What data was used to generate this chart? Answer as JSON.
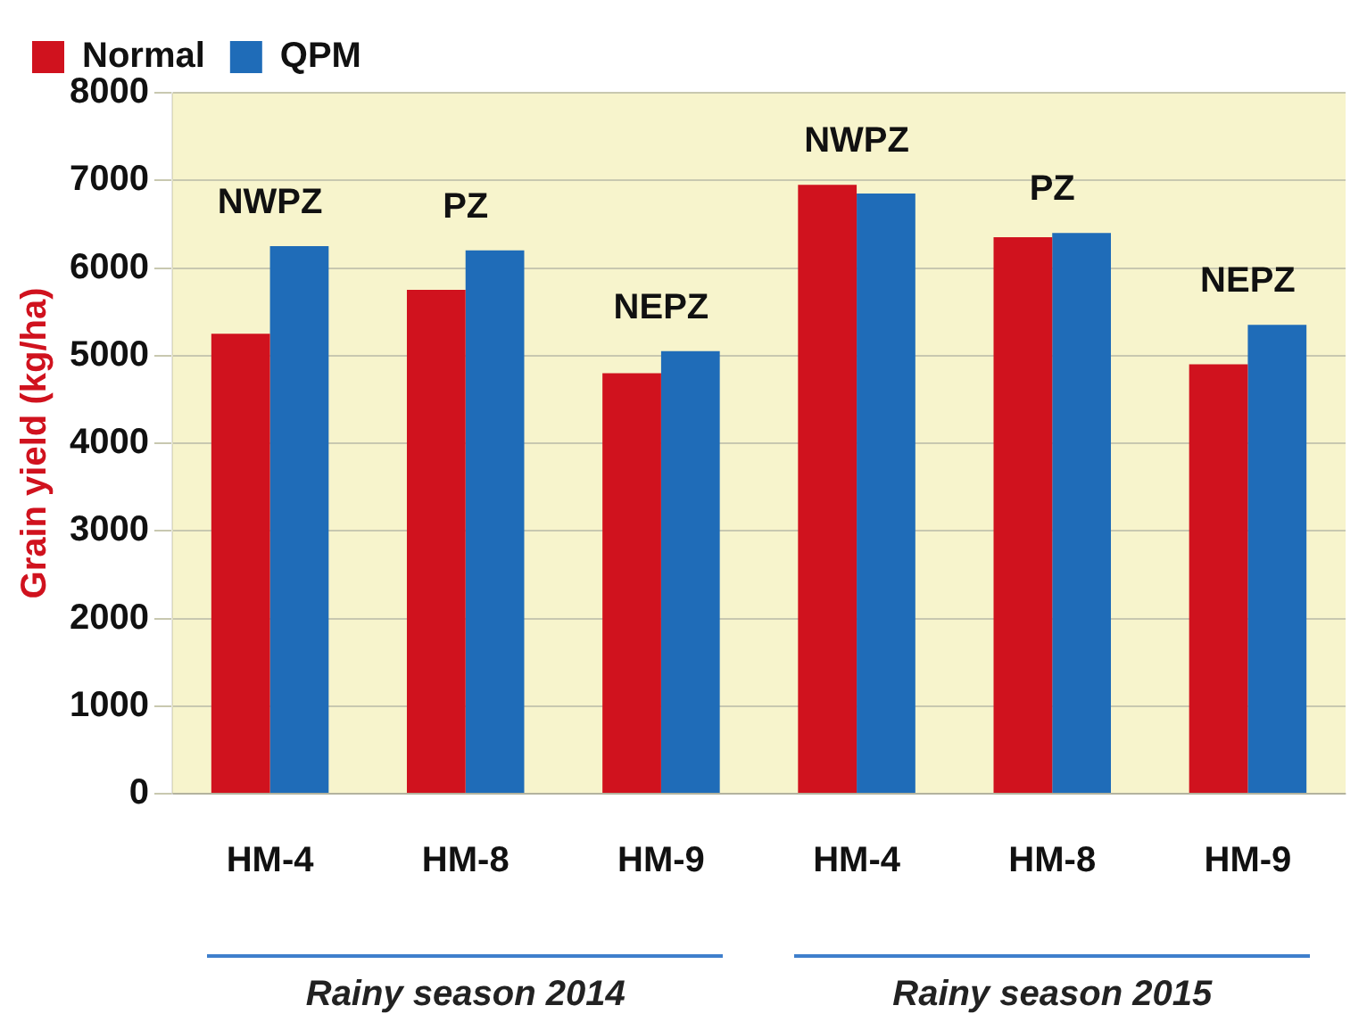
{
  "chart_data": {
    "type": "bar",
    "ylabel": "Grain yield (kg/ha)",
    "categories": [
      "HM-4",
      "HM-8",
      "HM-9",
      "HM-4",
      "HM-8",
      "HM-9"
    ],
    "series": [
      {
        "name": "Normal",
        "color": "#d0121e",
        "values": [
          5250,
          5750,
          4800,
          6950,
          6350,
          4900
        ]
      },
      {
        "name": "QPM",
        "color": "#1f6cb8",
        "values": [
          6250,
          6200,
          5050,
          6850,
          6400,
          5350
        ]
      }
    ],
    "ylim": [
      0,
      8000
    ],
    "yticks": [
      0,
      1000,
      2000,
      3000,
      4000,
      5000,
      6000,
      7000,
      8000
    ],
    "grid": "y",
    "legend": "top left",
    "annotations": [
      "NWPZ",
      "PZ",
      "NEPZ",
      "NWPZ",
      "PZ",
      "NEPZ",
      "Rainy season 2014",
      "Rainy season 2015"
    ]
  }
}
